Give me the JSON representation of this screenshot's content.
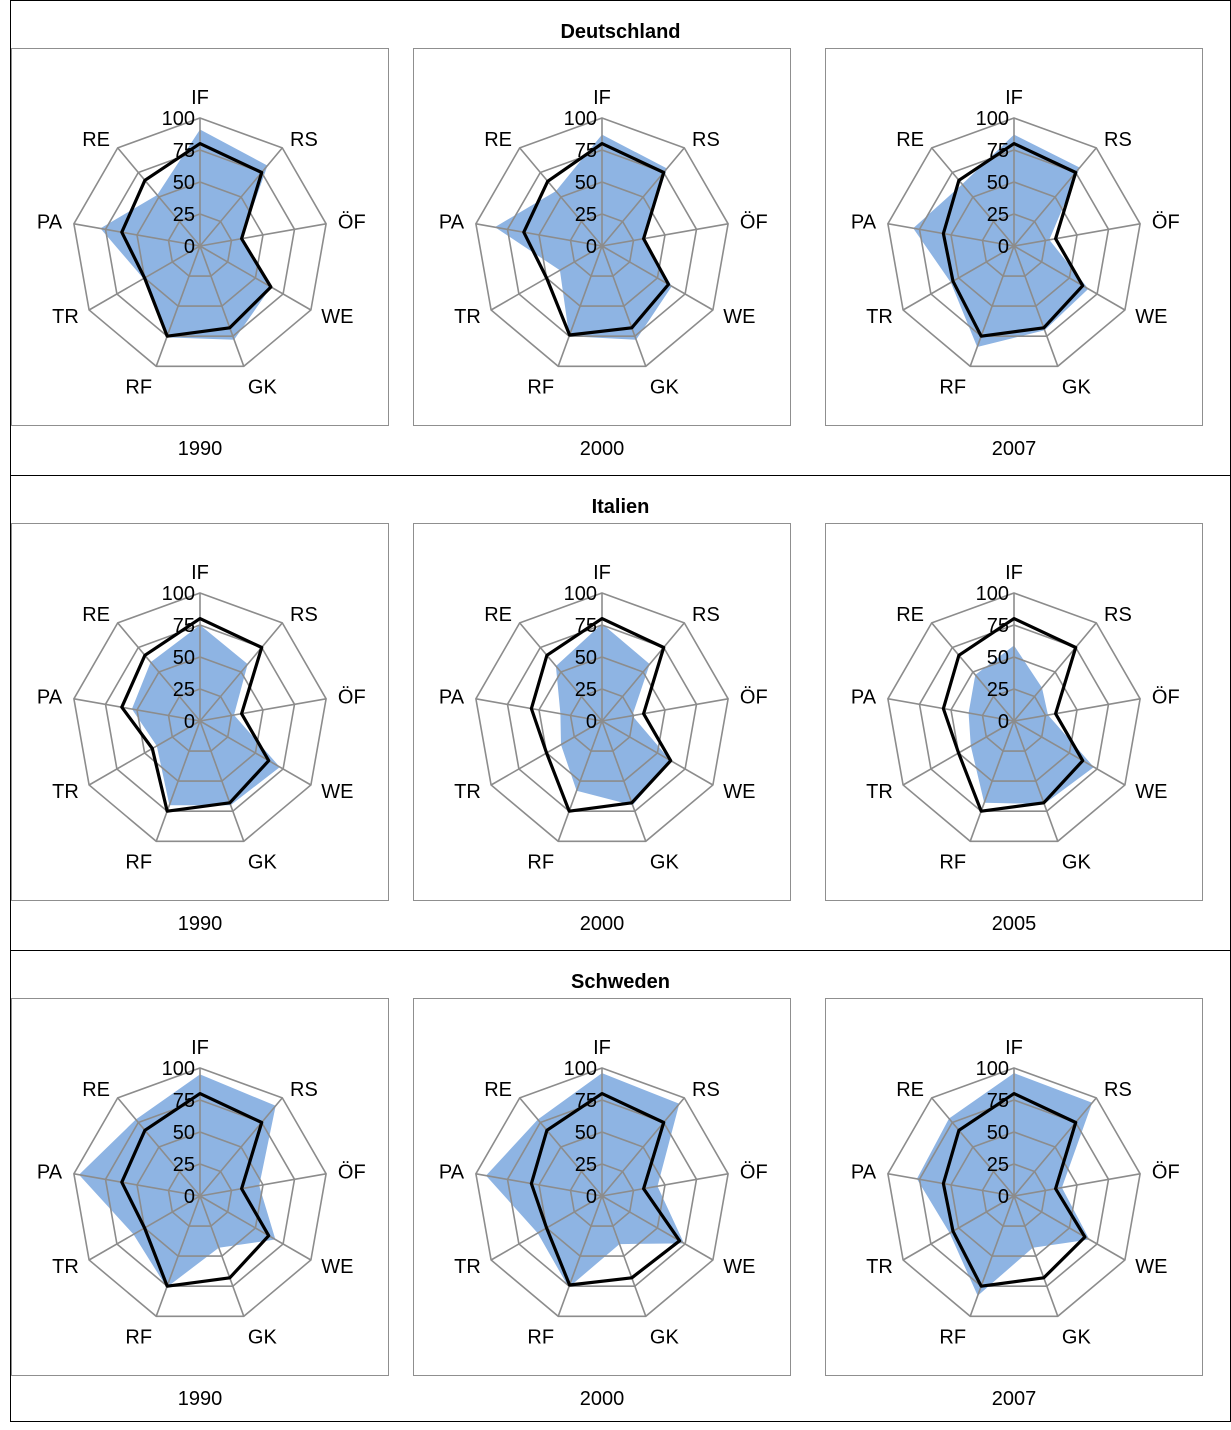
{
  "chart_data": {
    "type": "radar",
    "axes": [
      "IF",
      "RS",
      "ÖF",
      "WE",
      "GK",
      "RF",
      "TR",
      "PA",
      "RE"
    ],
    "scale": [
      0,
      25,
      50,
      75,
      100
    ],
    "ylim": [
      0,
      100
    ],
    "colors": {
      "area": "#8eb4e3",
      "line": "#000000",
      "grid": "#8c8c8c"
    },
    "countries": [
      {
        "name": "Deutschland",
        "panels": [
          {
            "year": "1990",
            "highlight": false,
            "series": [
              {
                "style": "area",
                "values": [
                  91,
                  82,
                  33,
                  64,
                  78,
                  76,
                  51,
                  79,
                  52
                ]
              },
              {
                "style": "line",
                "values": [
                  80,
                  75,
                  33,
                  64,
                  68,
                  75,
                  50,
                  62,
                  67
                ]
              }
            ]
          },
          {
            "year": "2000",
            "highlight": false,
            "series": [
              {
                "style": "area",
                "values": [
                  87,
                  79,
                  33,
                  63,
                  78,
                  75,
                  38,
                  85,
                  56
                ]
              },
              {
                "style": "line",
                "values": [
                  80,
                  75,
                  33,
                  60,
                  68,
                  74,
                  50,
                  62,
                  66
                ]
              }
            ]
          },
          {
            "year": "2007",
            "highlight": false,
            "series": [
              {
                "style": "area",
                "values": [
                  87,
                  80,
                  28,
                  67,
                  70,
                  84,
                  57,
                  80,
                  63
                ]
              },
              {
                "style": "line",
                "values": [
                  80,
                  75,
                  33,
                  62,
                  68,
                  75,
                  55,
                  56,
                  67
                ]
              }
            ]
          }
        ]
      },
      {
        "name": "Italien",
        "panels": [
          {
            "year": "1990",
            "highlight": false,
            "series": [
              {
                "style": "area",
                "values": [
                  75,
                  58,
                  27,
                  72,
                  70,
                  70,
                  39,
                  54,
                  60
                ]
              },
              {
                "style": "line",
                "values": [
                  80,
                  75,
                  33,
                  62,
                  68,
                  75,
                  43,
                  62,
                  67
                ]
              }
            ]
          },
          {
            "year": "2000",
            "highlight": false,
            "series": [
              {
                "style": "area",
                "values": [
                  76,
                  58,
                  24,
                  62,
                  70,
                  58,
                  37,
                  33,
                  56
                ]
              },
              {
                "style": "line",
                "values": [
                  80,
                  75,
                  33,
                  62,
                  68,
                  75,
                  50,
                  56,
                  67
                ]
              }
            ]
          },
          {
            "year": "2005",
            "highlight": false,
            "series": [
              {
                "style": "area",
                "values": [
                  59,
                  34,
                  27,
                  72,
                  69,
                  68,
                  39,
                  36,
                  47
                ]
              },
              {
                "style": "line",
                "values": [
                  80,
                  75,
                  33,
                  62,
                  68,
                  75,
                  50,
                  56,
                  67
                ]
              }
            ]
          }
        ]
      },
      {
        "name": "Schweden",
        "panels": [
          {
            "year": "1990",
            "highlight": false,
            "series": [
              {
                "style": "area",
                "values": [
                  95,
                  92,
                  47,
                  68,
                  43,
                  76,
                  60,
                  96,
                  78
                ]
              },
              {
                "style": "line",
                "values": [
                  80,
                  75,
                  33,
                  62,
                  68,
                  75,
                  50,
                  62,
                  67
                ]
              }
            ]
          },
          {
            "year": "2000",
            "highlight": false,
            "series": [
              {
                "style": "area",
                "values": [
                  96,
                  94,
                  44,
                  74,
                  40,
                  76,
                  58,
                  92,
                  78
                ]
              },
              {
                "style": "line",
                "values": [
                  80,
                  75,
                  33,
                  70,
                  68,
                  74,
                  50,
                  56,
                  67
                ]
              }
            ]
          },
          {
            "year": "2007",
            "highlight": false,
            "series": [
              {
                "style": "area",
                "values": [
                  96,
                  95,
                  38,
                  68,
                  43,
                  83,
                  58,
                  77,
                  79
                ]
              },
              {
                "style": "line",
                "values": [
                  80,
                  75,
                  33,
                  64,
                  68,
                  75,
                  55,
                  56,
                  67
                ]
              }
            ]
          }
        ]
      }
    ]
  }
}
